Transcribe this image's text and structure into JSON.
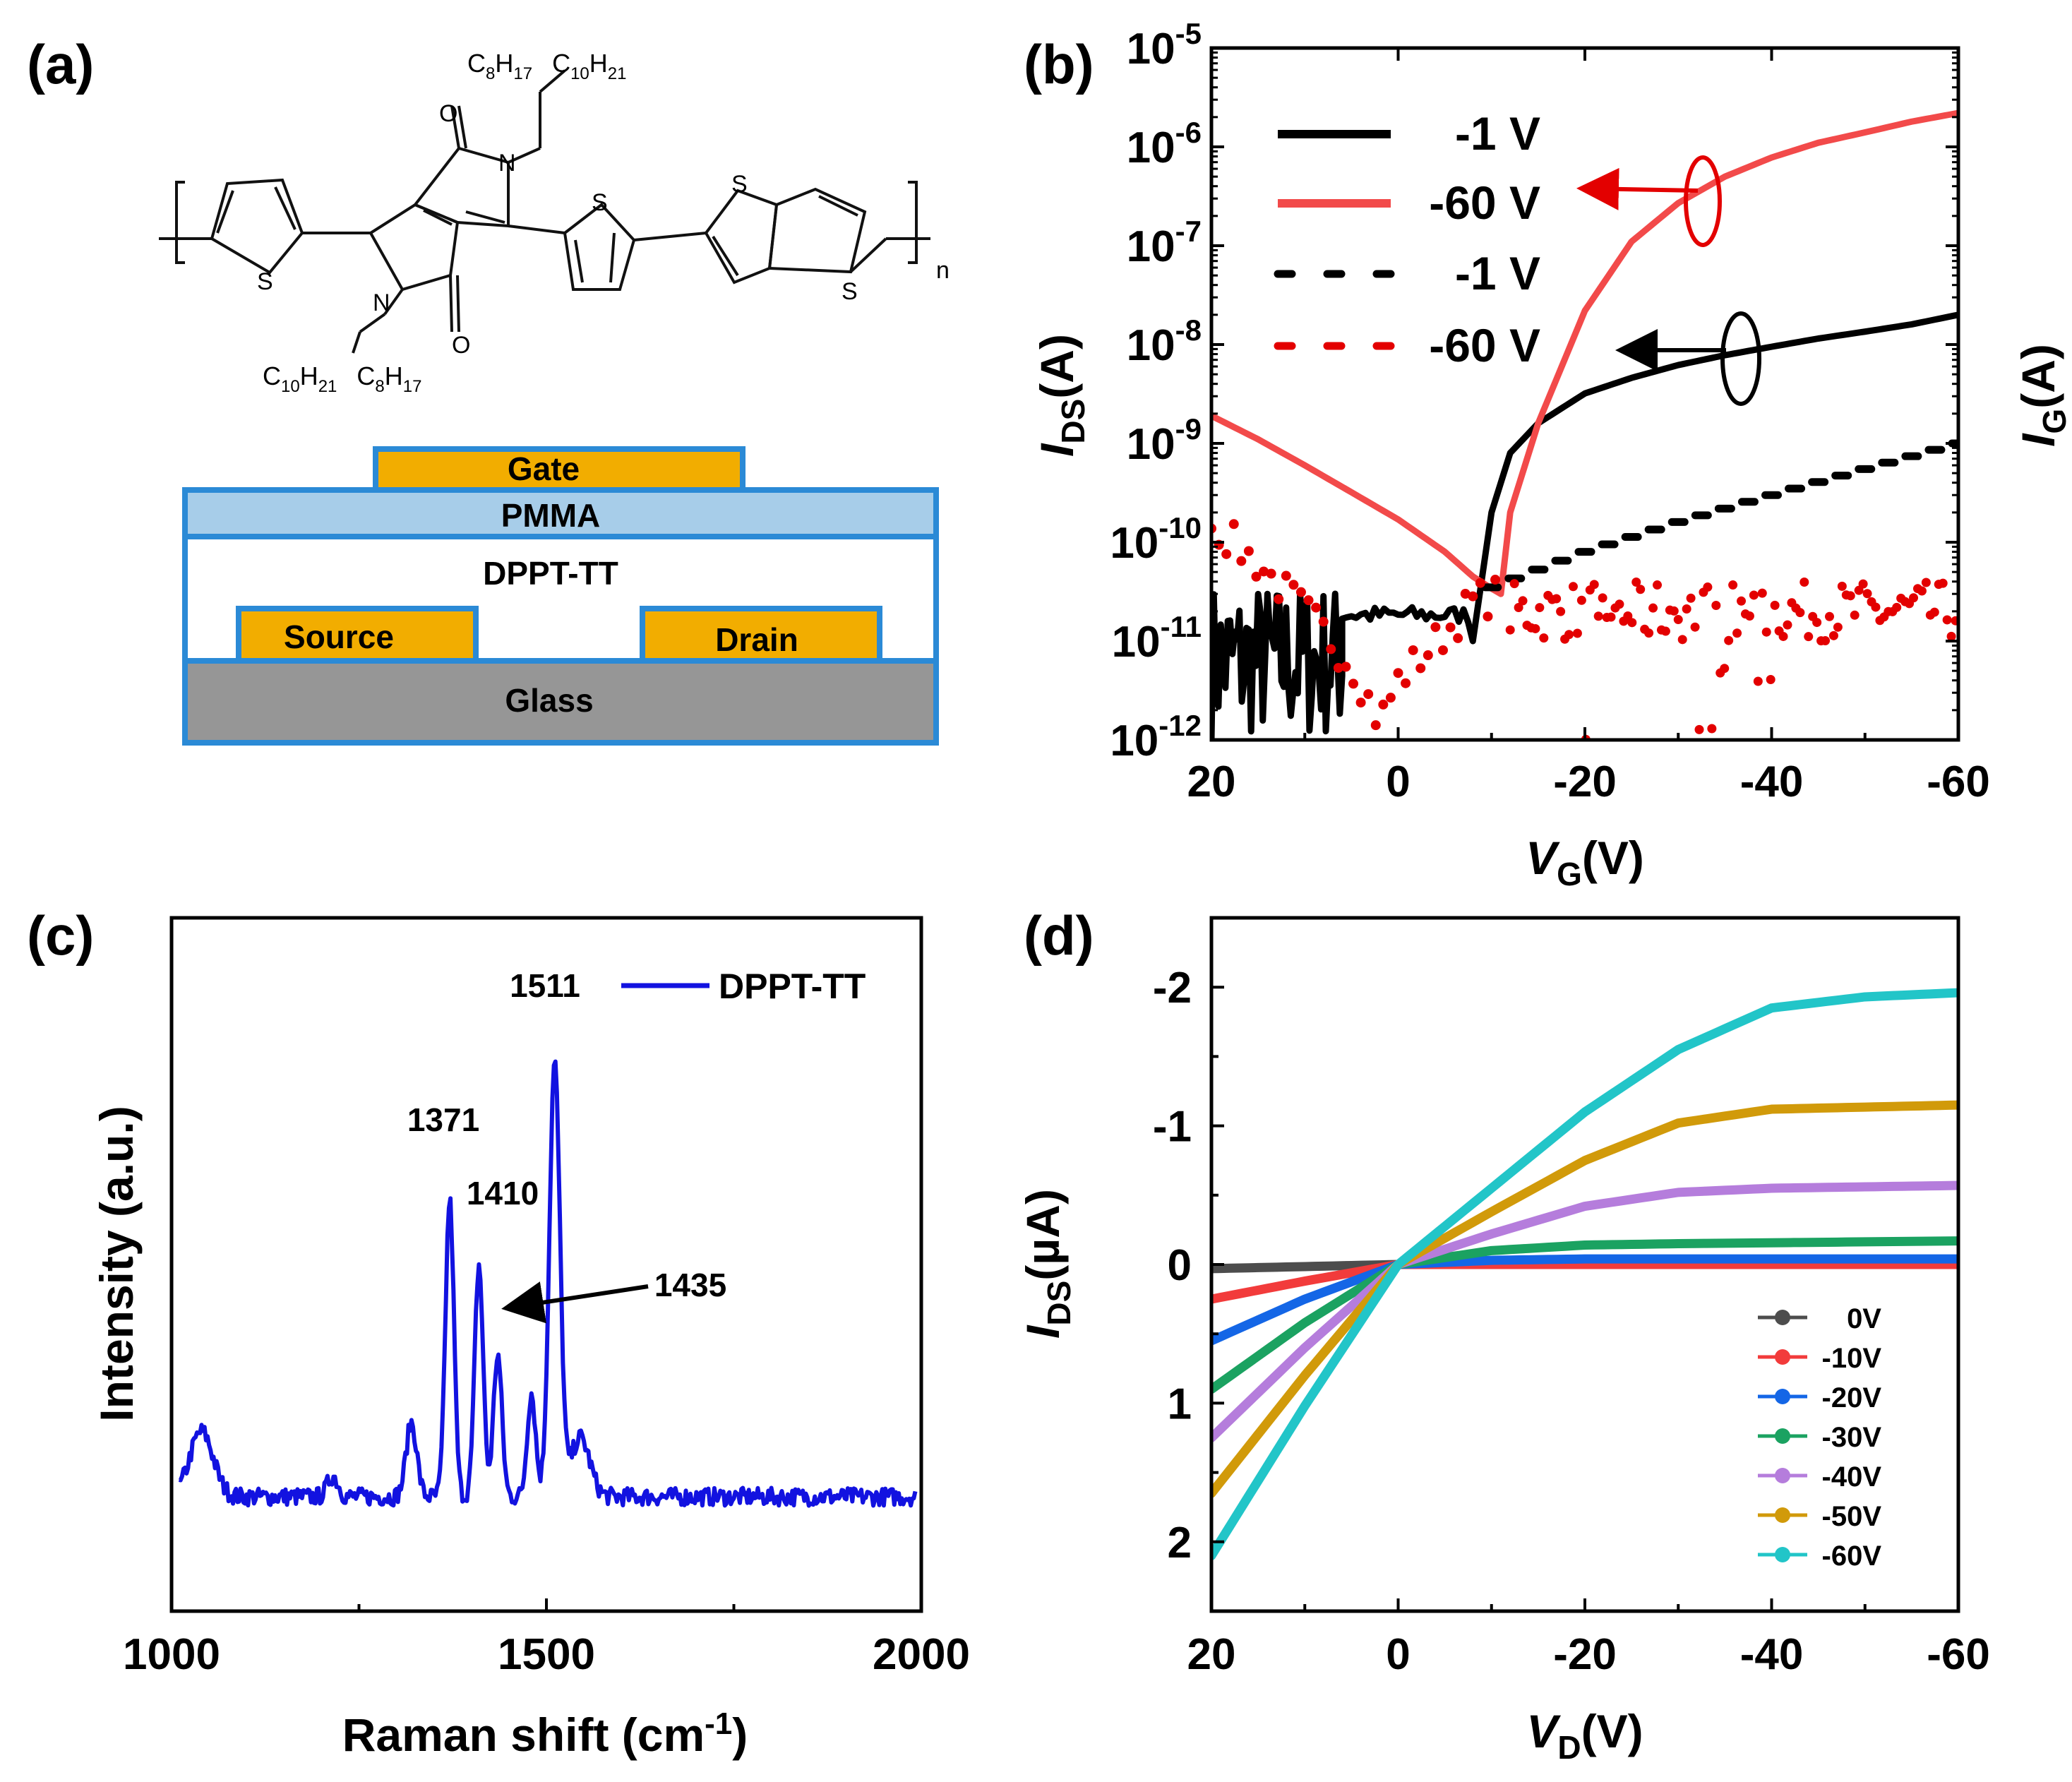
{
  "panels": {
    "a": {
      "label": "(a)",
      "structure": {
        "chain_top": "C8H17/C10H21",
        "chain_bottom": "C10H21/C8H17",
        "atom_S": "S",
        "atom_N": "N",
        "atom_O": "O",
        "repeat": "n",
        "sub": {
          "C": "C",
          "H": "H",
          "n8": "8",
          "n17": "17",
          "n10": "10",
          "n21": "21"
        }
      },
      "device": {
        "layers": {
          "gate": "Gate",
          "pmma": "PMMA",
          "semiconductor": "DPPT-TT",
          "source": "Source",
          "drain": "Drain",
          "substrate": "Glass"
        },
        "colors": {
          "gold": "#f2ad00",
          "pmma": "#a7cde9",
          "frame": "#2b8ad6",
          "glass": "#969696"
        }
      }
    },
    "b": {
      "label": "(b)"
    },
    "c": {
      "label": "(c)"
    },
    "d": {
      "label": "(d)"
    }
  },
  "chart_data": [
    {
      "id": "b",
      "type": "line",
      "title": "",
      "xlabel": {
        "main": "V",
        "sub": "G",
        "unit": "(V)"
      },
      "ylabel": {
        "main": "I",
        "sub": "DS",
        "unit": "(A)"
      },
      "y2label": {
        "main": "I",
        "sub": "G",
        "unit": "(A)"
      },
      "xlim": [
        20,
        -60
      ],
      "ylim": [
        1e-12,
        1e-05
      ],
      "yscale": "log",
      "xticks": [
        "20",
        "0",
        "-20",
        "-40",
        "-60"
      ],
      "yticks": [
        {
          "base": "10",
          "exp": "-12"
        },
        {
          "base": "10",
          "exp": "-11"
        },
        {
          "base": "10",
          "exp": "-10"
        },
        {
          "base": "10",
          "exp": "-9"
        },
        {
          "base": "10",
          "exp": "-8"
        },
        {
          "base": "10",
          "exp": "-7"
        },
        {
          "base": "10",
          "exp": "-6"
        },
        {
          "base": "10",
          "exp": "-5"
        }
      ],
      "legend_position": "top-left",
      "series": [
        {
          "name": "-1 V",
          "style": "solid",
          "color": "#000000",
          "x": [
            -8,
            -10,
            -12,
            -15,
            -20,
            -25,
            -30,
            -35,
            -40,
            -45,
            -50,
            -55,
            -60
          ],
          "y": [
            1e-11,
            2e-10,
            8e-10,
            1.6e-09,
            3.2e-09,
            4.6e-09,
            6.2e-09,
            7.8e-09,
            9.5e-09,
            1.15e-08,
            1.35e-08,
            1.6e-08,
            2e-08
          ],
          "noise_x": [
            20,
            6
          ],
          "noise_range": [
            1e-12,
            3e-11
          ]
        },
        {
          "name": "-60 V",
          "style": "solid",
          "color": "#f24a4a",
          "x": [
            20,
            15,
            10,
            5,
            0,
            -5,
            -8,
            -10,
            -11,
            -12,
            -15,
            -20,
            -25,
            -30,
            -35,
            -40,
            -45,
            -50,
            -55,
            -60
          ],
          "y": [
            1.9e-09,
            1.1e-09,
            6e-10,
            3.2e-10,
            1.7e-10,
            8e-11,
            4.5e-11,
            3.4e-11,
            3e-11,
            2e-10,
            1.6e-09,
            2.2e-08,
            1.1e-07,
            2.7e-07,
            5e-07,
            7.8e-07,
            1.1e-06,
            1.4e-06,
            1.8e-06,
            2.2e-06
          ]
        },
        {
          "name": "-1 V",
          "style": "dotted",
          "color": "#000000",
          "x": [
            -10,
            -20,
            -30,
            -40,
            -50,
            -60
          ],
          "y": [
            3.5e-11,
            8e-11,
            1.6e-10,
            3e-10,
            5.5e-10,
            1e-09
          ]
        },
        {
          "name": "-60 V",
          "style": "dotted",
          "color": "#e30000",
          "x": [
            20,
            15,
            10,
            5,
            2,
            0,
            -5,
            -8,
            -11
          ],
          "y": [
            1.5e-10,
            6e-11,
            2e-11,
            6e-12,
            1.5e-12,
            4e-12,
            1.2e-11,
            2.5e-11,
            3e-11
          ],
          "noise_x": [
            -12,
            -60
          ],
          "noise_range": [
            1e-12,
            5e-11
          ]
        }
      ],
      "annotations": {
        "arrow_red": "points to left axis (I_DS)",
        "arrow_black": "points to left axis (I_DS)"
      }
    },
    {
      "id": "c",
      "type": "line",
      "title": "",
      "xlabel": {
        "main": "Raman shift (cm",
        "sup": "-1",
        "close": ")"
      },
      "ylabel": "Intensity (a.u.)",
      "xlim": [
        1000,
        2000
      ],
      "xticks": [
        "1000",
        "1500",
        "2000"
      ],
      "series": [
        {
          "name": "DPPT-TT",
          "color": "#1212e0",
          "peaks": [
            {
              "x": 1040,
              "height": 0.22,
              "width": 22
            },
            {
              "x": 1215,
              "height": 0.07,
              "width": 10
            },
            {
              "x": 1320,
              "height": 0.25,
              "width": 10
            },
            {
              "x": 1371,
              "height": 1.0,
              "width": 8
            },
            {
              "x": 1410,
              "height": 0.78,
              "width": 8
            },
            {
              "x": 1435,
              "height": 0.48,
              "width": 8
            },
            {
              "x": 1480,
              "height": 0.35,
              "width": 8
            },
            {
              "x": 1511,
              "height": 1.46,
              "width": 10
            },
            {
              "x": 1545,
              "height": 0.2,
              "width": 18
            }
          ]
        }
      ],
      "annotations": [
        {
          "text": "1511",
          "x": 1511
        },
        {
          "text": "1371",
          "x": 1371
        },
        {
          "text": "1410",
          "x": 1410
        },
        {
          "text": "1435",
          "x": 1435,
          "arrow": true
        }
      ]
    },
    {
      "id": "d",
      "type": "line",
      "title": "",
      "xlabel": {
        "main": "V",
        "sub": "D",
        "unit": "(V)"
      },
      "ylabel": {
        "main": "I",
        "sub": "DS",
        "unit": "(µA)"
      },
      "xlim": [
        20,
        -60
      ],
      "ylim": [
        2.5,
        -2.5
      ],
      "xticks": [
        "20",
        "0",
        "-20",
        "-40",
        "-60"
      ],
      "yticks": [
        "-2",
        "-1",
        "0",
        "1",
        "2"
      ],
      "legend_position": "bottom-right",
      "series": [
        {
          "name": "0V",
          "color": "#4d4d4d",
          "x": [
            20,
            0,
            -60
          ],
          "y": [
            0.03,
            0,
            0
          ]
        },
        {
          "name": "-10V",
          "color": "#f23b3b",
          "x": [
            20,
            10,
            0,
            -20,
            -60
          ],
          "y": [
            0.25,
            0.12,
            0,
            0,
            0
          ]
        },
        {
          "name": "-20V",
          "color": "#1466e6",
          "x": [
            20,
            10,
            0,
            -10,
            -20,
            -60
          ],
          "y": [
            0.55,
            0.25,
            0,
            -0.03,
            -0.04,
            -0.04
          ]
        },
        {
          "name": "-30V",
          "color": "#1ba261",
          "x": [
            20,
            10,
            0,
            -10,
            -20,
            -30,
            -60
          ],
          "y": [
            0.9,
            0.42,
            0,
            -0.1,
            -0.14,
            -0.15,
            -0.17
          ]
        },
        {
          "name": "-40V",
          "color": "#b57ddc",
          "x": [
            20,
            10,
            0,
            -10,
            -20,
            -30,
            -40,
            -60
          ],
          "y": [
            1.25,
            0.6,
            0,
            -0.22,
            -0.42,
            -0.52,
            -0.55,
            -0.57
          ]
        },
        {
          "name": "-50V",
          "color": "#d19a0a",
          "x": [
            20,
            10,
            0,
            -10,
            -20,
            -30,
            -40,
            -60
          ],
          "y": [
            1.65,
            0.8,
            0,
            -0.38,
            -0.75,
            -1.02,
            -1.12,
            -1.15
          ]
        },
        {
          "name": "-60V",
          "color": "#22c5c8",
          "x": [
            20,
            10,
            0,
            -10,
            -20,
            -30,
            -40,
            -50,
            -60
          ],
          "y": [
            2.1,
            1.02,
            0,
            -0.55,
            -1.1,
            -1.55,
            -1.85,
            -1.93,
            -1.96
          ]
        }
      ]
    }
  ]
}
